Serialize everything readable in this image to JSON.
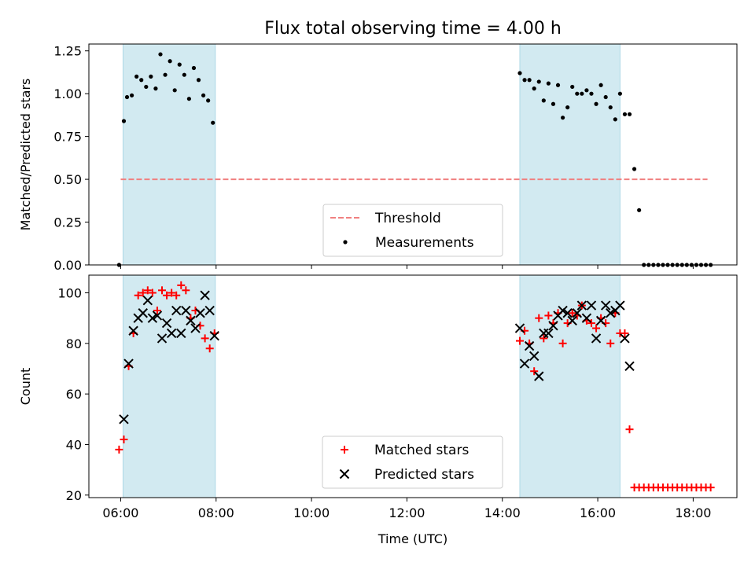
{
  "chart_data": [
    {
      "type": "scatter",
      "title": "Flux total observing time = 4.00 h",
      "ylabel": "Matched/Predicted stars",
      "xlabel": "",
      "xlim": [
        "05:20",
        "18:55"
      ],
      "ylim": [
        0,
        1.29
      ],
      "x_tick_labels": [
        "06:00",
        "08:00",
        "10:00",
        "12:00",
        "14:00",
        "16:00",
        "18:00"
      ],
      "y_ticks": [
        0.0,
        0.25,
        0.5,
        0.75,
        1.0,
        1.25
      ],
      "y_tick_labels": [
        "0.00",
        "0.25",
        "0.50",
        "0.75",
        "1.00",
        "1.25"
      ],
      "shaded_spans": [
        [
          "06:03",
          "07:59"
        ],
        [
          "14:22",
          "16:28"
        ]
      ],
      "shade_color": "#add8e6",
      "threshold": {
        "name": "Threshold",
        "value": 0.5,
        "x_range": [
          "06:00",
          "18:18"
        ],
        "color": "#f08080"
      },
      "legend": {
        "placement": "bottom-center",
        "entries": [
          "Threshold",
          "Measurements"
        ]
      },
      "series": [
        {
          "name": "Measurements",
          "color": "#000000",
          "x": [
            "05:58",
            "06:04",
            "06:08",
            "06:14",
            "06:20",
            "06:26",
            "06:32",
            "06:38",
            "06:44",
            "06:50",
            "06:56",
            "07:02",
            "07:08",
            "07:14",
            "07:20",
            "07:26",
            "07:32",
            "07:38",
            "07:44",
            "07:50",
            "07:56",
            "14:22",
            "14:28",
            "14:34",
            "14:40",
            "14:46",
            "14:52",
            "14:58",
            "15:04",
            "15:10",
            "15:16",
            "15:22",
            "15:28",
            "15:34",
            "15:40",
            "15:46",
            "15:52",
            "15:58",
            "16:04",
            "16:10",
            "16:16",
            "16:22",
            "16:28",
            "16:34",
            "16:40",
            "16:46",
            "16:52",
            "16:58",
            "17:04",
            "17:10",
            "17:16",
            "17:22",
            "17:28",
            "17:34",
            "17:40",
            "17:46",
            "17:52",
            "17:58",
            "18:04",
            "18:10",
            "18:16",
            "18:22"
          ],
          "y": [
            0.0,
            0.84,
            0.98,
            0.99,
            1.1,
            1.08,
            1.04,
            1.1,
            1.03,
            1.23,
            1.11,
            1.19,
            1.02,
            1.17,
            1.11,
            0.97,
            1.15,
            1.08,
            0.99,
            0.96,
            0.83,
            1.12,
            1.08,
            1.08,
            1.03,
            1.07,
            0.96,
            1.06,
            0.94,
            1.05,
            0.86,
            0.92,
            1.04,
            1.0,
            1.0,
            1.02,
            1.0,
            0.94,
            1.05,
            0.98,
            0.92,
            0.85,
            1.0,
            0.88,
            0.88,
            0.56,
            0.32,
            0.0,
            0.0,
            0.0,
            0.0,
            0.0,
            0.0,
            0.0,
            0.0,
            0.0,
            0.0,
            0.0,
            0.0,
            0.0,
            0.0,
            0.0
          ]
        }
      ]
    },
    {
      "type": "scatter",
      "title": "",
      "ylabel": "Count",
      "xlabel": "Time (UTC)",
      "xlim": [
        "05:20",
        "18:55"
      ],
      "ylim": [
        19,
        107
      ],
      "x_tick_labels": [
        "06:00",
        "08:00",
        "10:00",
        "12:00",
        "14:00",
        "16:00",
        "18:00"
      ],
      "y_ticks": [
        20,
        40,
        60,
        80,
        100
      ],
      "y_tick_labels": [
        "20",
        "40",
        "60",
        "80",
        "100"
      ],
      "shaded_spans": [
        [
          "06:03",
          "07:59"
        ],
        [
          "14:22",
          "16:28"
        ]
      ],
      "shade_color": "#add8e6",
      "legend": {
        "placement": "bottom-center",
        "entries": [
          "Matched stars",
          "Predicted stars"
        ]
      },
      "series": [
        {
          "name": "Matched stars",
          "marker": "plus",
          "color": "#ff0000",
          "x": [
            "05:58",
            "06:04",
            "06:10",
            "06:16",
            "06:22",
            "06:28",
            "06:34",
            "06:40",
            "06:46",
            "06:52",
            "06:58",
            "07:04",
            "07:10",
            "07:16",
            "07:22",
            "07:28",
            "07:34",
            "07:40",
            "07:46",
            "07:52",
            "07:58",
            "14:22",
            "14:28",
            "14:34",
            "14:40",
            "14:46",
            "14:52",
            "14:58",
            "15:04",
            "15:10",
            "15:16",
            "15:22",
            "15:28",
            "15:34",
            "15:40",
            "15:46",
            "15:52",
            "15:58",
            "16:04",
            "16:10",
            "16:16",
            "16:22",
            "16:28",
            "16:34",
            "16:40",
            "16:46",
            "16:52",
            "16:58",
            "17:04",
            "17:10",
            "17:16",
            "17:22",
            "17:28",
            "17:34",
            "17:40",
            "17:46",
            "17:52",
            "17:58",
            "18:04",
            "18:10",
            "18:16",
            "18:22"
          ],
          "y": [
            38,
            42,
            71,
            84,
            99,
            100,
            101,
            100,
            93,
            101,
            99,
            100,
            99,
            103,
            101,
            90,
            93,
            87,
            82,
            78,
            84,
            81,
            85,
            80,
            69,
            90,
            82,
            91,
            88,
            92,
            80,
            88,
            92,
            91,
            95,
            89,
            88,
            86,
            90,
            88,
            80,
            92,
            84,
            84,
            46,
            23,
            23,
            23,
            23,
            23,
            23,
            23,
            23,
            23,
            23,
            23,
            23,
            23,
            23,
            23,
            23,
            23
          ]
        },
        {
          "name": "Predicted stars",
          "marker": "x",
          "color": "#000000",
          "x": [
            "06:04",
            "06:10",
            "06:16",
            "06:22",
            "06:28",
            "06:34",
            "06:40",
            "06:46",
            "06:52",
            "06:58",
            "07:04",
            "07:10",
            "07:16",
            "07:22",
            "07:28",
            "07:34",
            "07:40",
            "07:46",
            "07:52",
            "07:58",
            "14:22",
            "14:28",
            "14:34",
            "14:40",
            "14:46",
            "14:52",
            "14:58",
            "15:04",
            "15:10",
            "15:16",
            "15:22",
            "15:28",
            "15:34",
            "15:40",
            "15:46",
            "15:52",
            "15:58",
            "16:04",
            "16:10",
            "16:16",
            "16:22",
            "16:28",
            "16:34",
            "16:40"
          ],
          "y": [
            50,
            72,
            85,
            90,
            92,
            97,
            90,
            91,
            82,
            88,
            84,
            93,
            84,
            93,
            89,
            86,
            92,
            99,
            93,
            83,
            86,
            72,
            79,
            75,
            67,
            84,
            84,
            87,
            91,
            93,
            92,
            89,
            92,
            95,
            90,
            95,
            82,
            89,
            95,
            92,
            93,
            95,
            82,
            71
          ]
        }
      ]
    }
  ]
}
